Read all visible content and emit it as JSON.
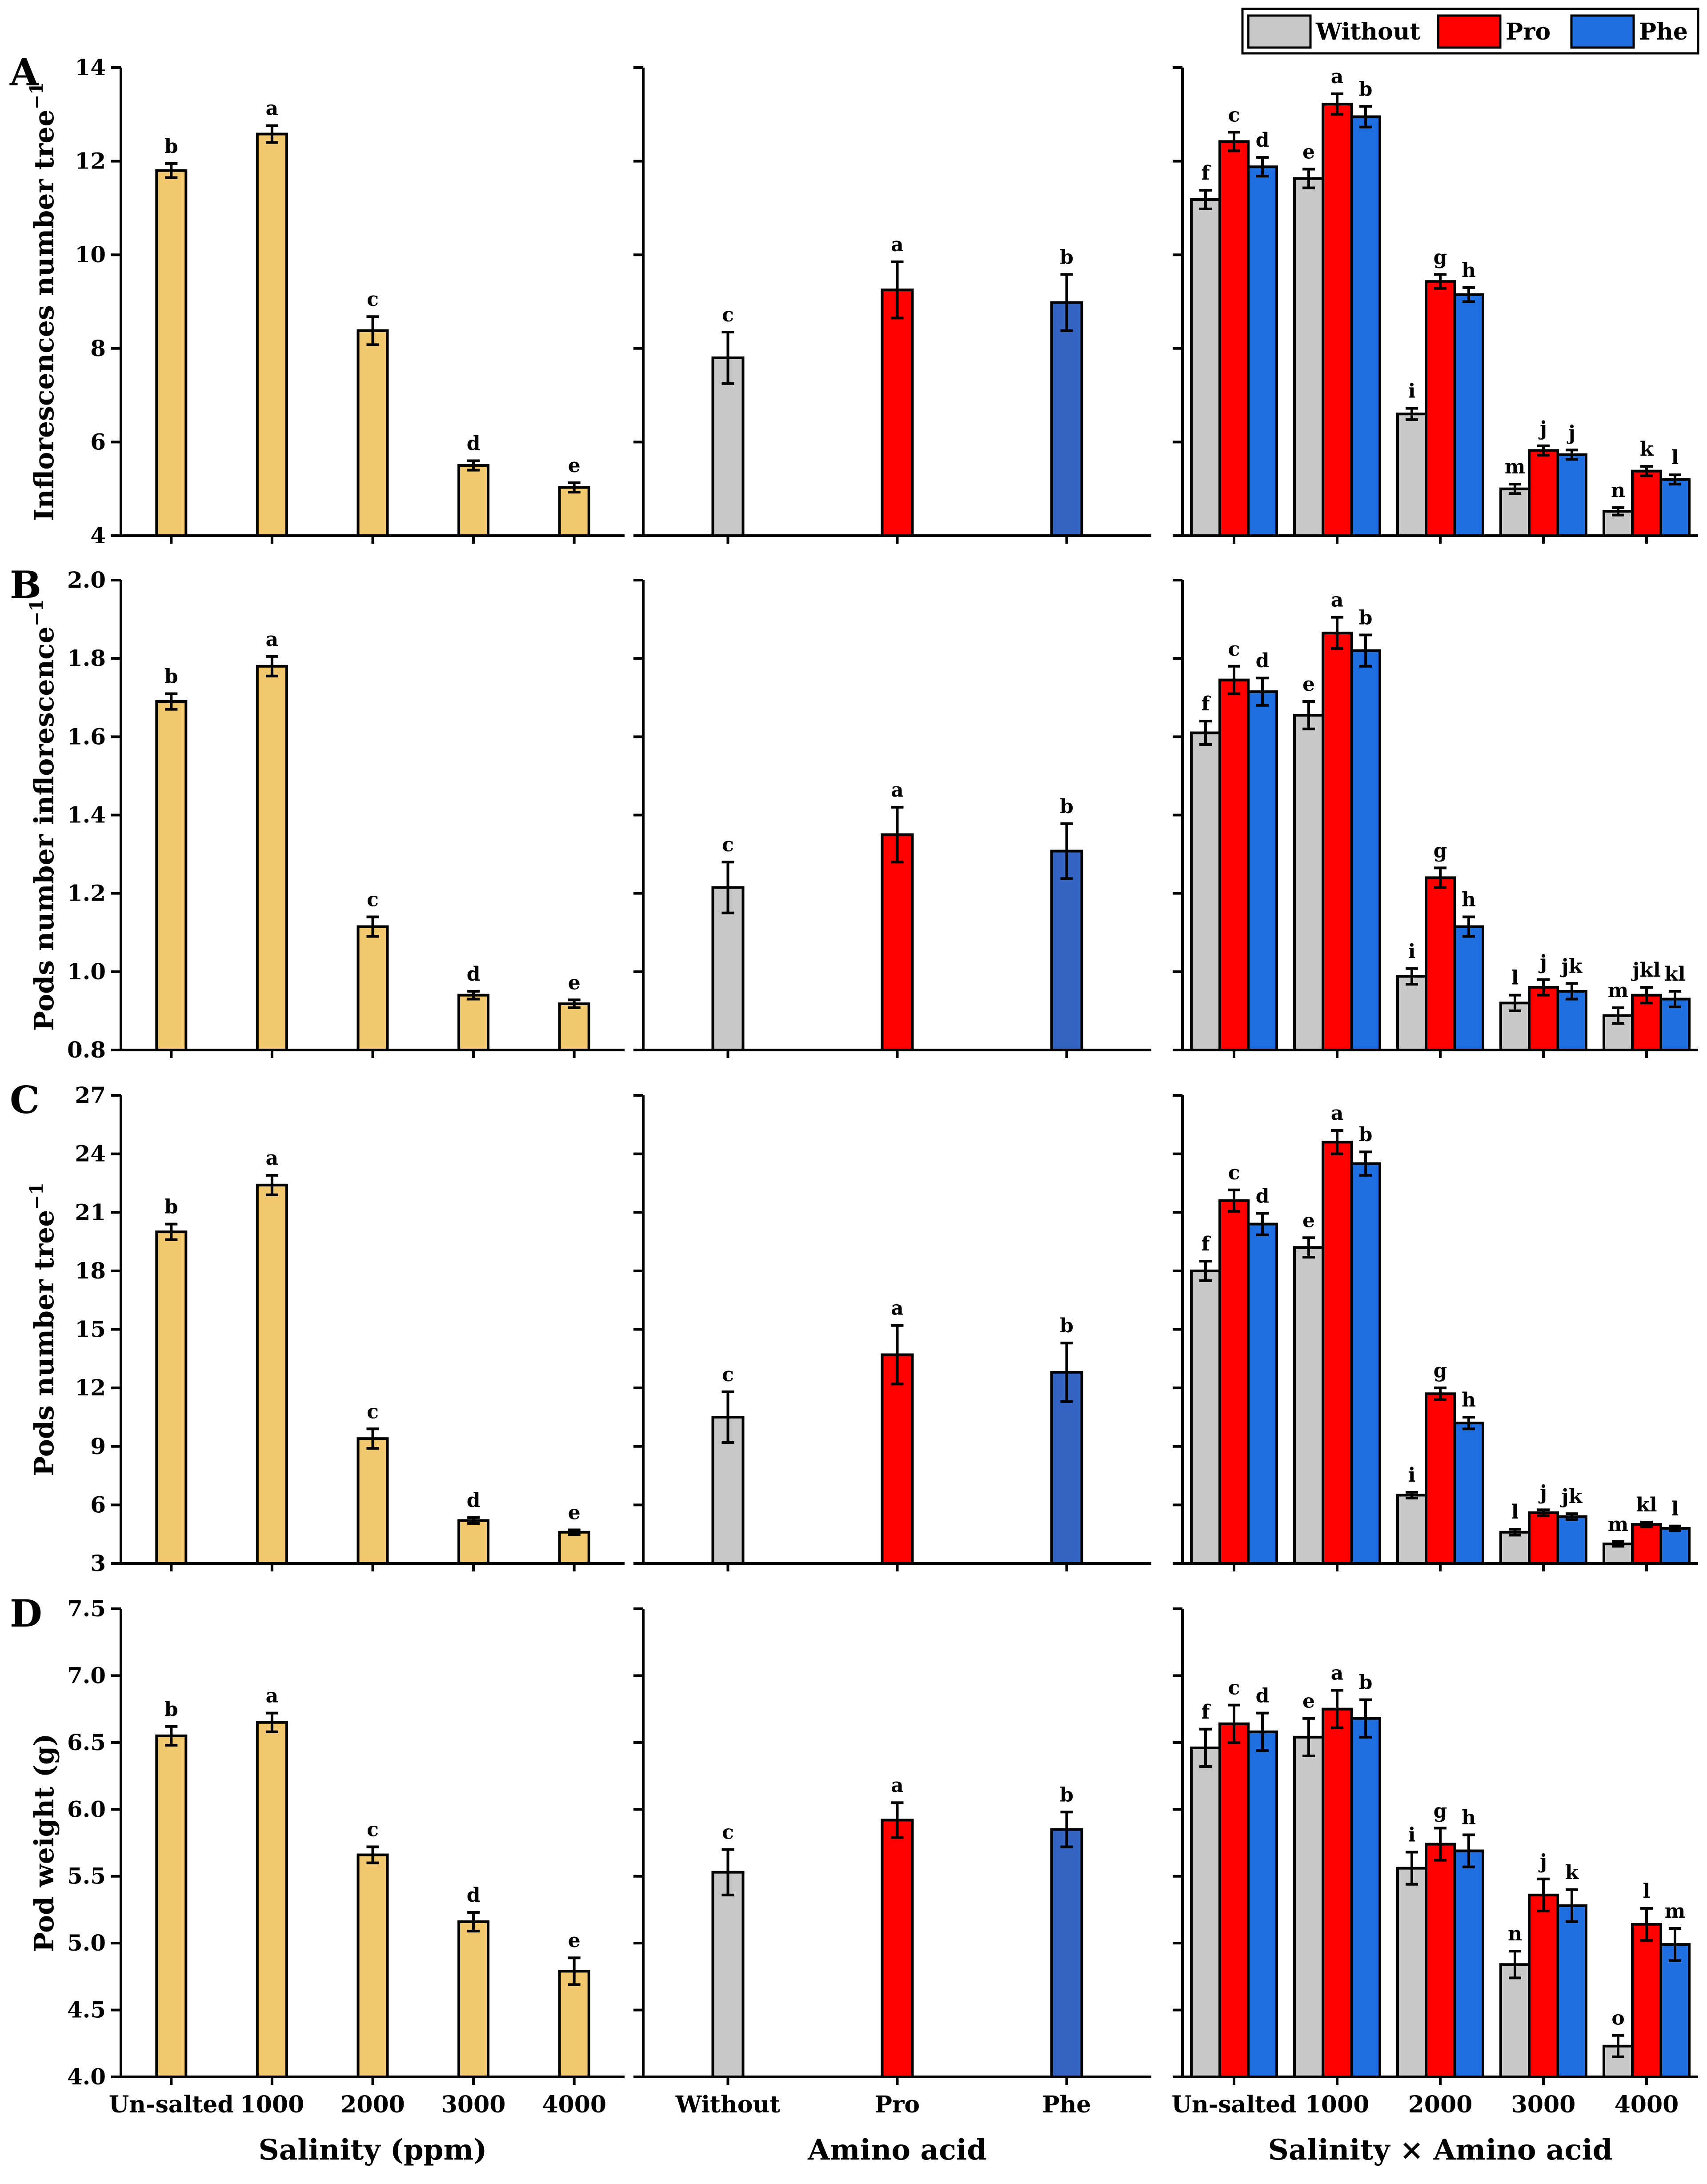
{
  "colors": {
    "salinity": "#F2C96E",
    "without": "#C8C8C8",
    "pro": "#FF0000",
    "phe": "#1F6FE0",
    "phe_main": "#3565C2"
  },
  "legend": [
    "Without",
    "Pro",
    "Phe"
  ],
  "x_labels": {
    "salinity": "Salinity (ppm)",
    "amino": "Amino acid",
    "interaction": "Salinity × Amino acid"
  },
  "chart_data": [
    {
      "panel": "A",
      "type": "bar",
      "ylabel": "Inflorescences number tree",
      "ylabel_sup": "−1",
      "ylim": [
        4,
        14
      ],
      "yticks": [
        "4",
        "6",
        "8",
        "10",
        "12",
        "14"
      ],
      "salinity": {
        "categories": [
          "Un-salted",
          "1000",
          "2000",
          "3000",
          "4000"
        ],
        "values": [
          11.8,
          12.58,
          8.38,
          5.5,
          5.03
        ],
        "errors": [
          0.15,
          0.18,
          0.3,
          0.1,
          0.1
        ],
        "letters": [
          "b",
          "a",
          "c",
          "d",
          "e"
        ]
      },
      "amino": {
        "categories": [
          "Without",
          "Pro",
          "Phe"
        ],
        "values": [
          7.8,
          9.25,
          8.98
        ],
        "errors": [
          0.55,
          0.6,
          0.6
        ],
        "letters": [
          "c",
          "a",
          "b"
        ]
      },
      "interaction": {
        "categories": [
          "Un-salted",
          "1000",
          "2000",
          "3000",
          "4000"
        ],
        "series": [
          {
            "name": "Without",
            "values": [
              11.18,
              11.63,
              6.6,
              5.0,
              4.52
            ],
            "errors": [
              0.2,
              0.2,
              0.12,
              0.1,
              0.08
            ],
            "letters": [
              "f",
              "e",
              "i",
              "m",
              "n"
            ]
          },
          {
            "name": "Pro",
            "values": [
              12.42,
              13.22,
              9.43,
              5.82,
              5.38
            ],
            "errors": [
              0.2,
              0.22,
              0.15,
              0.1,
              0.1
            ],
            "letters": [
              "c",
              "a",
              "g",
              "j",
              "k"
            ]
          },
          {
            "name": "Phe",
            "values": [
              11.88,
              12.95,
              9.15,
              5.73,
              5.2
            ],
            "errors": [
              0.2,
              0.22,
              0.15,
              0.1,
              0.1
            ],
            "letters": [
              "d",
              "b",
              "h",
              "j",
              "l"
            ]
          }
        ]
      }
    },
    {
      "panel": "B",
      "type": "bar",
      "ylabel": "Pods number inflorescence",
      "ylabel_sup": "−1",
      "ylim": [
        0.8,
        2.0
      ],
      "yticks": [
        "0.8",
        "1.0",
        "1.2",
        "1.4",
        "1.6",
        "1.8",
        "2.0"
      ],
      "salinity": {
        "categories": [
          "Un-salted",
          "1000",
          "2000",
          "3000",
          "4000"
        ],
        "values": [
          1.69,
          1.78,
          1.115,
          0.94,
          0.918
        ],
        "errors": [
          0.02,
          0.025,
          0.025,
          0.01,
          0.01
        ],
        "letters": [
          "b",
          "a",
          "c",
          "d",
          "e"
        ]
      },
      "amino": {
        "categories": [
          "Without",
          "Pro",
          "Phe"
        ],
        "values": [
          1.215,
          1.35,
          1.308
        ],
        "errors": [
          0.065,
          0.07,
          0.07
        ],
        "letters": [
          "c",
          "a",
          "b"
        ]
      },
      "interaction": {
        "categories": [
          "Un-salted",
          "1000",
          "2000",
          "3000",
          "4000"
        ],
        "series": [
          {
            "name": "Without",
            "values": [
              1.61,
              1.655,
              0.988,
              0.92,
              0.888
            ],
            "errors": [
              0.03,
              0.035,
              0.02,
              0.02,
              0.02
            ],
            "letters": [
              "f",
              "e",
              "i",
              "l",
              "m"
            ]
          },
          {
            "name": "Pro",
            "values": [
              1.745,
              1.865,
              1.24,
              0.96,
              0.94
            ],
            "errors": [
              0.035,
              0.04,
              0.025,
              0.02,
              0.02
            ],
            "letters": [
              "c",
              "a",
              "g",
              "j",
              "jkl"
            ]
          },
          {
            "name": "Phe",
            "values": [
              1.715,
              1.82,
              1.115,
              0.95,
              0.93
            ],
            "errors": [
              0.035,
              0.04,
              0.025,
              0.02,
              0.02
            ],
            "letters": [
              "d",
              "b",
              "h",
              "jk",
              "kl"
            ]
          }
        ]
      }
    },
    {
      "panel": "C",
      "type": "bar",
      "ylabel": "Pods number tree",
      "ylabel_sup": "−1",
      "ylim": [
        3,
        27
      ],
      "yticks": [
        "3",
        "6",
        "9",
        "12",
        "15",
        "18",
        "21",
        "24",
        "27"
      ],
      "salinity": {
        "categories": [
          "Un-salted",
          "1000",
          "2000",
          "3000",
          "4000"
        ],
        "values": [
          20.0,
          22.4,
          9.4,
          5.2,
          4.6
        ],
        "errors": [
          0.4,
          0.5,
          0.5,
          0.15,
          0.12
        ],
        "letters": [
          "b",
          "a",
          "c",
          "d",
          "e"
        ]
      },
      "amino": {
        "categories": [
          "Without",
          "Pro",
          "Phe"
        ],
        "values": [
          10.5,
          13.7,
          12.8
        ],
        "errors": [
          1.3,
          1.5,
          1.5
        ],
        "letters": [
          "c",
          "a",
          "b"
        ]
      },
      "interaction": {
        "categories": [
          "Un-salted",
          "1000",
          "2000",
          "3000",
          "4000"
        ],
        "series": [
          {
            "name": "Without",
            "values": [
              18.0,
              19.2,
              6.5,
              4.6,
              4.0
            ],
            "errors": [
              0.5,
              0.5,
              0.15,
              0.15,
              0.12
            ],
            "letters": [
              "f",
              "e",
              "i",
              "l",
              "m"
            ]
          },
          {
            "name": "Pro",
            "values": [
              21.6,
              24.6,
              11.7,
              5.6,
              5.0
            ],
            "errors": [
              0.55,
              0.6,
              0.3,
              0.15,
              0.12
            ],
            "letters": [
              "c",
              "a",
              "g",
              "j",
              "kl"
            ]
          },
          {
            "name": "Phe",
            "values": [
              20.4,
              23.5,
              10.2,
              5.4,
              4.8
            ],
            "errors": [
              0.55,
              0.6,
              0.3,
              0.15,
              0.12
            ],
            "letters": [
              "d",
              "b",
              "h",
              "jk",
              "l"
            ]
          }
        ]
      }
    },
    {
      "panel": "D",
      "type": "bar",
      "ylabel": "Pod weight (g)",
      "ylabel_sup": "",
      "ylim": [
        4.0,
        7.5
      ],
      "yticks": [
        "4.0",
        "4.5",
        "5.0",
        "5.5",
        "6.0",
        "6.5",
        "7.0",
        "7.5"
      ],
      "salinity": {
        "categories": [
          "Un-salted",
          "1000",
          "2000",
          "3000",
          "4000"
        ],
        "values": [
          6.55,
          6.65,
          5.66,
          5.16,
          4.79
        ],
        "errors": [
          0.07,
          0.07,
          0.06,
          0.07,
          0.1
        ],
        "letters": [
          "b",
          "a",
          "c",
          "d",
          "e"
        ]
      },
      "amino": {
        "categories": [
          "Without",
          "Pro",
          "Phe"
        ],
        "values": [
          5.53,
          5.92,
          5.85
        ],
        "errors": [
          0.17,
          0.13,
          0.13
        ],
        "letters": [
          "c",
          "a",
          "b"
        ]
      },
      "interaction": {
        "categories": [
          "Un-salted",
          "1000",
          "2000",
          "3000",
          "4000"
        ],
        "series": [
          {
            "name": "Without",
            "values": [
              6.46,
              6.54,
              5.56,
              4.84,
              4.23
            ],
            "errors": [
              0.14,
              0.14,
              0.12,
              0.1,
              0.08
            ],
            "letters": [
              "f",
              "e",
              "i",
              "n",
              "o"
            ]
          },
          {
            "name": "Pro",
            "values": [
              6.64,
              6.75,
              5.74,
              5.36,
              5.14
            ],
            "errors": [
              0.14,
              0.14,
              0.12,
              0.12,
              0.12
            ],
            "letters": [
              "c",
              "a",
              "g",
              "j",
              "l"
            ]
          },
          {
            "name": "Phe",
            "values": [
              6.58,
              6.68,
              5.69,
              5.28,
              4.99
            ],
            "errors": [
              0.14,
              0.14,
              0.12,
              0.12,
              0.12
            ],
            "letters": [
              "d",
              "b",
              "h",
              "k",
              "m"
            ]
          }
        ]
      }
    }
  ]
}
